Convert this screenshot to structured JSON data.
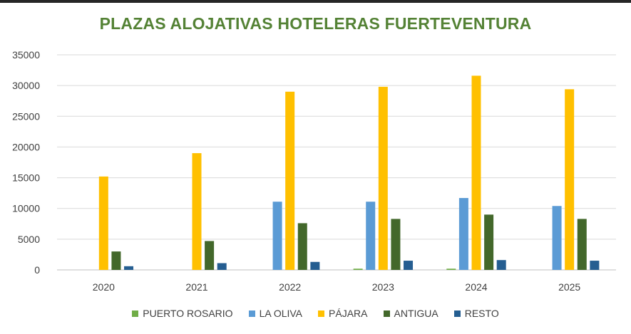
{
  "chart_data": {
    "type": "bar",
    "title": "PLAZAS ALOJATIVAS HOTELERAS FUERTEVENTURA",
    "xlabel": "",
    "ylabel": "",
    "categories": [
      "2020",
      "2021",
      "2022",
      "2023",
      "2024",
      "2025"
    ],
    "ylim": [
      0,
      35000
    ],
    "yticks": [
      "0",
      "5000",
      "10000",
      "15000",
      "20000",
      "25000",
      "30000",
      "35000"
    ],
    "grid": true,
    "legend_position": "bottom",
    "series": [
      {
        "name": "PUERTO ROSARIO",
        "color": "#70ad47",
        "values": [
          0,
          0,
          0,
          200,
          200,
          0
        ]
      },
      {
        "name": "LA OLIVA",
        "color": "#5b9bd5",
        "values": [
          0,
          0,
          11100,
          11100,
          11700,
          10400
        ]
      },
      {
        "name": "PÁJARA",
        "color": "#ffc000",
        "values": [
          15200,
          19000,
          29000,
          29800,
          31600,
          29400
        ]
      },
      {
        "name": "ANTIGUA",
        "color": "#43682b",
        "values": [
          3000,
          4700,
          7600,
          8300,
          9000,
          8300
        ]
      },
      {
        "name": "RESTO",
        "color": "#255e91",
        "values": [
          600,
          1100,
          1300,
          1500,
          1600,
          1500
        ]
      }
    ]
  }
}
